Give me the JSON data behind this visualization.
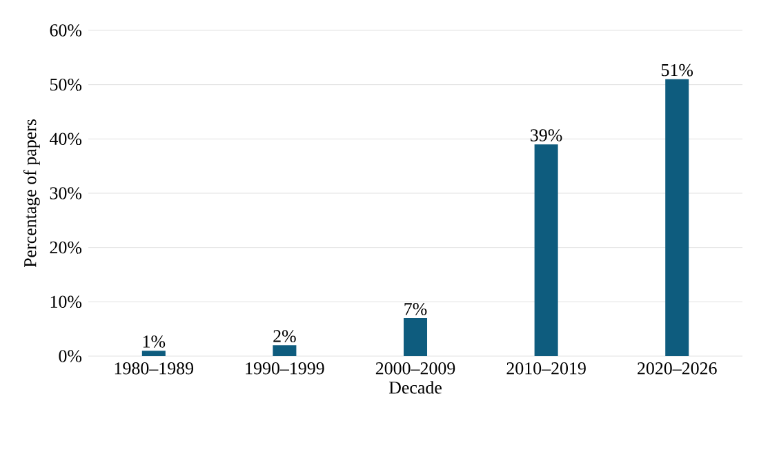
{
  "chart_data": {
    "type": "bar",
    "xlabel": "Decade",
    "ylabel": "Percentage of papers",
    "categories": [
      "1980–1989",
      "1990–1999",
      "2000–2009",
      "2010–2019",
      "2020–2026"
    ],
    "values": [
      1,
      2,
      7,
      39,
      51
    ],
    "value_labels": [
      "1%",
      "2%",
      "7%",
      "39%",
      "51%"
    ],
    "color": "#0e5c7e",
    "ylim": [
      0,
      60
    ],
    "yticks": [
      {
        "value": 0,
        "label": "0%"
      },
      {
        "value": 10,
        "label": "10%"
      },
      {
        "value": 20,
        "label": "20%"
      },
      {
        "value": 30,
        "label": "30%"
      },
      {
        "value": 40,
        "label": "40%"
      },
      {
        "value": 50,
        "label": "50%"
      },
      {
        "value": 60,
        "label": "60%"
      }
    ],
    "grid": "y"
  }
}
